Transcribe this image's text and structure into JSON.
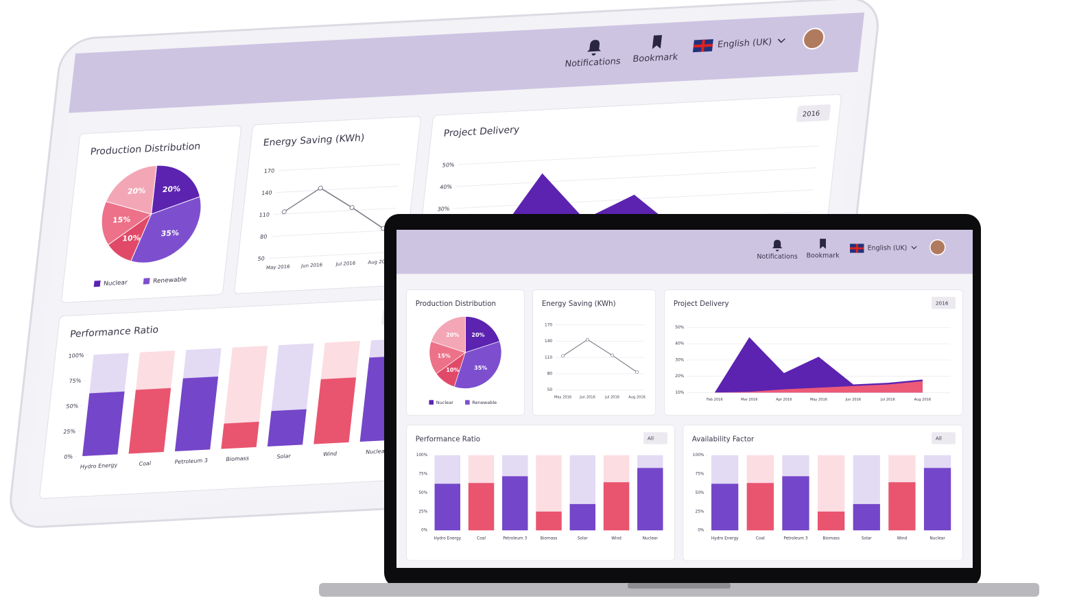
{
  "header": {
    "notifications": "Notifications",
    "bookmark": "Bookmark",
    "language": "English (UK)"
  },
  "chart_data": [
    {
      "type": "pie",
      "title": "Production Distribution",
      "values": [
        20,
        35,
        10,
        15,
        20
      ],
      "value_labels": [
        "20%",
        "35%",
        "10%",
        "15%",
        "20%"
      ],
      "colors": [
        "#5b23b0",
        "#7d4fcf",
        "#e04a68",
        "#ec7189",
        "#f3a7b6"
      ],
      "legend": [
        {
          "name": "Nuclear",
          "color": "#5b23b0"
        },
        {
          "name": "Renewable",
          "color": "#7d4fcf"
        }
      ]
    },
    {
      "type": "line",
      "title": "Energy Saving (KWh)",
      "categories": [
        "May 2016",
        "Jun 2016",
        "Jul 2016",
        "Aug 2016"
      ],
      "values": [
        113,
        143,
        114,
        83
      ],
      "color": "#7a7a86",
      "ylim": [
        50,
        170
      ],
      "yticks": [
        50,
        80,
        110,
        140,
        170
      ],
      "grid": true
    },
    {
      "type": "area",
      "title": "Project Delivery",
      "filter": "2016",
      "categories": [
        "Feb 2016",
        "Mar 2016",
        "Apr 2016",
        "May 2016",
        "Jun 2016",
        "Jul 2016",
        "Aug 2016"
      ],
      "series": [
        {
          "color": "#5b23b0",
          "values": [
            10,
            44,
            22,
            32,
            15,
            16,
            18
          ]
        },
        {
          "color": "#ec5a78",
          "values": [
            10,
            10.5,
            12,
            13,
            14,
            15,
            17
          ]
        }
      ],
      "ylim": [
        10,
        50
      ],
      "yticks": [
        {
          "value": 10,
          "label": "10%"
        },
        {
          "value": 20,
          "label": "20%"
        },
        {
          "value": 30,
          "label": "30%"
        },
        {
          "value": 40,
          "label": "40%"
        },
        {
          "value": 50,
          "label": "50%"
        }
      ],
      "grid": true
    },
    {
      "type": "bar",
      "title": "Performance Ratio",
      "filter": "All",
      "categories": [
        "Hydro Energy",
        "Coal",
        "Petroleum 3",
        "Biomass",
        "Solar",
        "Wind",
        "Nuclear"
      ],
      "values": [
        62,
        63,
        72,
        25,
        35,
        64,
        83
      ],
      "colors": [
        "#7446c9",
        "#e9546f",
        "#7446c9",
        "#e9546f",
        "#7446c9",
        "#e9546f",
        "#7446c9"
      ],
      "ylim": [
        0,
        100
      ],
      "yticks": [
        {
          "value": 0,
          "label": "0%"
        },
        {
          "value": 25,
          "label": "25%"
        },
        {
          "value": 50,
          "label": "50%"
        },
        {
          "value": 75,
          "label": "75%"
        },
        {
          "value": 100,
          "label": "100%"
        }
      ],
      "grid": false
    },
    {
      "type": "bar",
      "title": "Availability Factor",
      "filter": "All",
      "categories": [
        "Hydro Energy",
        "Coal",
        "Petroleum 3",
        "Biomass",
        "Solar",
        "Wind",
        "Nuclear"
      ],
      "values": [
        62,
        63,
        72,
        25,
        35,
        64,
        83
      ],
      "colors": [
        "#7446c9",
        "#e9546f",
        "#7446c9",
        "#e9546f",
        "#7446c9",
        "#e9546f",
        "#7446c9"
      ],
      "ylim": [
        0,
        100
      ],
      "yticks": [
        {
          "value": 0,
          "label": "0%"
        },
        {
          "value": 25,
          "label": "25%"
        },
        {
          "value": 50,
          "label": "50%"
        },
        {
          "value": 75,
          "label": "75%"
        },
        {
          "value": 100,
          "label": "100%"
        }
      ],
      "grid": false
    }
  ]
}
